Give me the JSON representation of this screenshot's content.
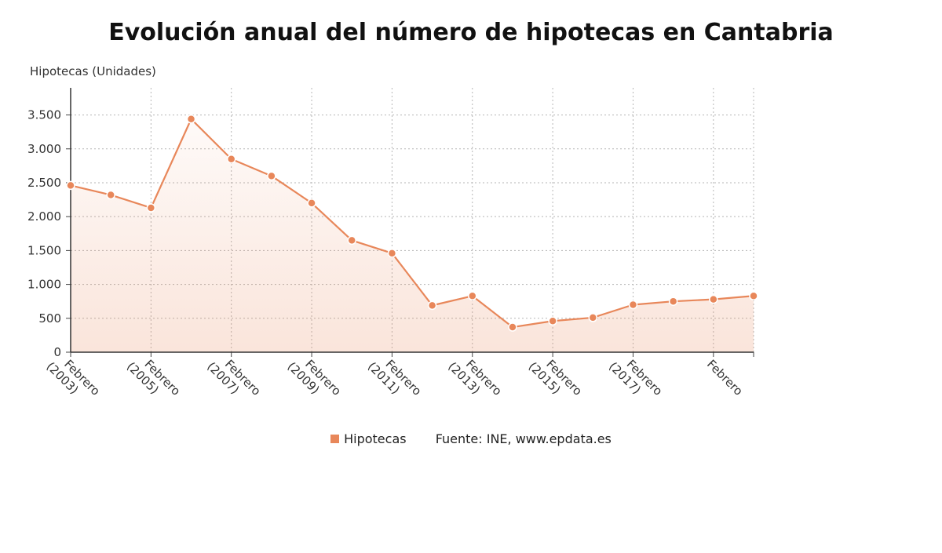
{
  "chart_data": {
    "type": "line",
    "title": "Evolución anual del número de hipotecas en Cantabria",
    "ylabel": "Hipotecas (Unidades)",
    "xlabel": "",
    "ylim": [
      0,
      3900
    ],
    "yticks": [
      0,
      500,
      1000,
      1500,
      2000,
      2500,
      3000,
      3500
    ],
    "ytick_labels": [
      "0",
      "500",
      "1.000",
      "1.500",
      "2.000",
      "2.500",
      "3.000",
      "3.500"
    ],
    "x_tick_labels": [
      [
        "Febrero",
        "(2003)"
      ],
      [
        "Febrero",
        "(2005)"
      ],
      [
        "Febrero",
        "(2007)"
      ],
      [
        "Febrero",
        "(2009)"
      ],
      [
        "Febrero",
        "(2011)"
      ],
      [
        "Febrero",
        "(2013)"
      ],
      [
        "Febrero",
        "(2015)"
      ],
      [
        "Febrero",
        "(2017)"
      ],
      [
        "Febrero"
      ]
    ],
    "grid": true,
    "legend_position": "bottom-center",
    "series": [
      {
        "name": "Hipotecas",
        "color": "#e8875a",
        "values": [
          2460,
          2320,
          2130,
          3440,
          2850,
          2600,
          2200,
          1650,
          1460,
          690,
          830,
          370,
          460,
          510,
          700,
          750,
          780,
          830
        ]
      }
    ]
  },
  "legend": {
    "series_label": "Hipotecas",
    "source": "Fuente: INE, www.epdata.es"
  }
}
